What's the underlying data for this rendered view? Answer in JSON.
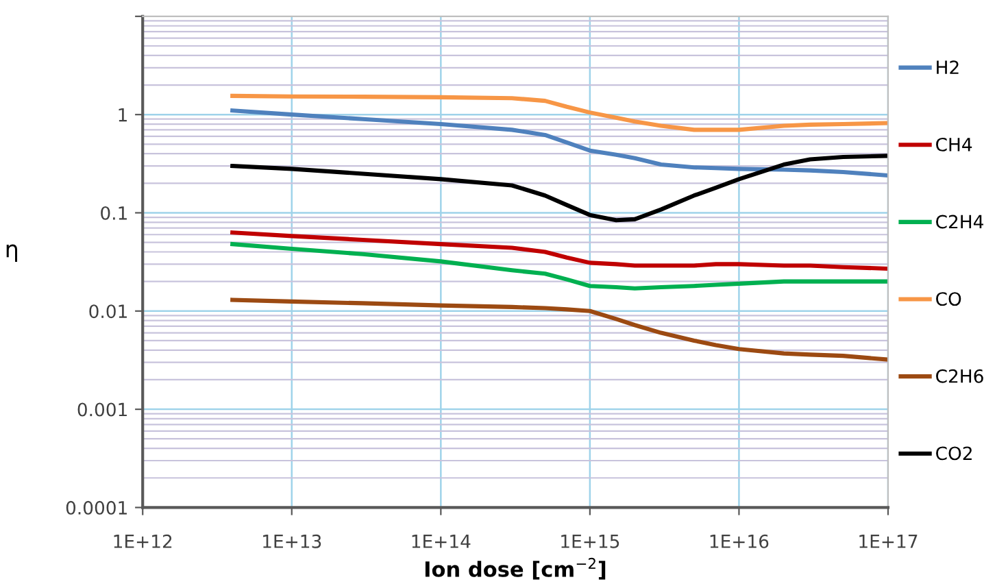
{
  "chart_data": {
    "type": "line",
    "xlabel": "Ion dose [cm$^{−2}$]",
    "ylabel": "η",
    "log": "xy",
    "grid": true,
    "legend": "right",
    "marker": "none",
    "line_style": "solid",
    "xlim": [
      1000000000000.0,
      1e+17
    ],
    "xticks": [
      {
        "value": 1000000000000.0,
        "label": "1E+12"
      },
      {
        "value": 10000000000000.0,
        "label": "1E+13"
      },
      {
        "value": 100000000000000.0,
        "label": "1E+14"
      },
      {
        "value": 1000000000000000.0,
        "label": "1E+15"
      },
      {
        "value": 1e+16,
        "label": "1E+16"
      },
      {
        "value": 1e+17,
        "label": "1E+17"
      }
    ],
    "ylim": [
      0.0001,
      10
    ],
    "yticks": [
      0.0001,
      0.001,
      0.01,
      0.1,
      1,
      {
        "value": 10,
        "label": null
      }
    ],
    "x": [
      4000000000000.0,
      10000000000000.0,
      30000000000000.0,
      100000000000000.0,
      300000000000000.0,
      500000000000000.0,
      700000000000000.0,
      1000000000000000.0,
      1500000000000000.0,
      2000000000000000.0,
      3000000000000000.0,
      5000000000000000.0,
      7000000000000000.0,
      1e+16,
      2e+16,
      3e+16,
      5e+16,
      1e+17
    ],
    "series": [
      {
        "name": "H2",
        "color": "#4f81bd",
        "values": [
          1.1,
          1.0,
          0.9,
          0.8,
          0.7,
          0.62,
          0.52,
          0.43,
          0.39,
          0.36,
          0.31,
          0.29,
          0.285,
          0.28,
          0.275,
          0.27,
          0.26,
          0.24
        ]
      },
      {
        "name": "CH4",
        "color": "#c00000",
        "values": [
          0.063,
          0.058,
          0.053,
          0.048,
          0.044,
          0.04,
          0.035,
          0.031,
          0.03,
          0.029,
          0.029,
          0.029,
          0.03,
          0.03,
          0.029,
          0.029,
          0.028,
          0.027
        ]
      },
      {
        "name": "C2H4",
        "color": "#00b050",
        "values": [
          0.048,
          0.043,
          0.038,
          0.032,
          0.026,
          0.024,
          0.021,
          0.018,
          0.0175,
          0.017,
          0.0175,
          0.018,
          0.0185,
          0.019,
          0.02,
          0.02,
          0.02,
          0.02
        ]
      },
      {
        "name": "CO",
        "color": "#f79646",
        "values": [
          1.55,
          1.53,
          1.52,
          1.5,
          1.47,
          1.38,
          1.2,
          1.05,
          0.93,
          0.85,
          0.77,
          0.7,
          0.7,
          0.7,
          0.77,
          0.79,
          0.8,
          0.82
        ]
      },
      {
        "name": "C2H6",
        "color": "#9c4a12",
        "values": [
          0.013,
          0.0125,
          0.012,
          0.0114,
          0.011,
          0.0107,
          0.0104,
          0.01,
          0.0083,
          0.0072,
          0.006,
          0.005,
          0.0045,
          0.0041,
          0.0037,
          0.0036,
          0.0035,
          0.0032
        ]
      },
      {
        "name": "CO2",
        "color": "#000000",
        "values": [
          0.3,
          0.28,
          0.25,
          0.22,
          0.19,
          0.15,
          0.12,
          0.095,
          0.084,
          0.086,
          0.108,
          0.15,
          0.18,
          0.22,
          0.31,
          0.35,
          0.37,
          0.38
        ]
      }
    ]
  }
}
